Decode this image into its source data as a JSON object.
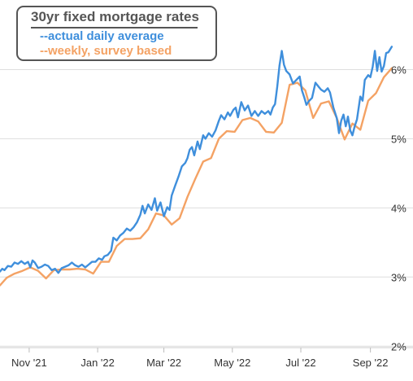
{
  "chart_data": {
    "type": "line",
    "title": "30yr fixed mortgage rates",
    "xlabel": "",
    "ylabel": "",
    "xlim": [
      "2021-10-06",
      "2022-09-23"
    ],
    "ylim": [
      1.85,
      6.5
    ],
    "y_ticks": [
      {
        "value": 2,
        "label": "2%"
      },
      {
        "value": 3,
        "label": "3%"
      },
      {
        "value": 4,
        "label": "4%"
      },
      {
        "value": 5,
        "label": "5%"
      },
      {
        "value": 6,
        "label": "6%"
      }
    ],
    "x_ticks": [
      {
        "date": "2021-11-01",
        "label": "Nov '21"
      },
      {
        "date": "2022-01-01",
        "label": "Jan '22"
      },
      {
        "date": "2022-03-01",
        "label": "Mar '22"
      },
      {
        "date": "2022-05-01",
        "label": "May '22"
      },
      {
        "date": "2022-07-01",
        "label": "Jul '22"
      },
      {
        "date": "2022-09-01",
        "label": "Sep '22"
      }
    ],
    "grid": "horizontal",
    "legend_position": "top-left",
    "series": [
      {
        "name": "--actual daily average",
        "color": "#3f8fdc",
        "points": [
          [
            "2021-10-06",
            3.08
          ],
          [
            "2021-10-08",
            3.12
          ],
          [
            "2021-10-10",
            3.1
          ],
          [
            "2021-10-13",
            3.16
          ],
          [
            "2021-10-16",
            3.15
          ],
          [
            "2021-10-19",
            3.21
          ],
          [
            "2021-10-22",
            3.19
          ],
          [
            "2021-10-25",
            3.23
          ],
          [
            "2021-10-28",
            3.19
          ],
          [
            "2021-10-31",
            3.22
          ],
          [
            "2021-11-02",
            3.14
          ],
          [
            "2021-11-04",
            3.24
          ],
          [
            "2021-11-06",
            3.21
          ],
          [
            "2021-11-09",
            3.13
          ],
          [
            "2021-11-12",
            3.15
          ],
          [
            "2021-11-15",
            3.18
          ],
          [
            "2021-11-18",
            3.16
          ],
          [
            "2021-11-21",
            3.1
          ],
          [
            "2021-11-24",
            3.12
          ],
          [
            "2021-11-27",
            3.06
          ],
          [
            "2021-11-30",
            3.13
          ],
          [
            "2021-12-03",
            3.15
          ],
          [
            "2021-12-06",
            3.17
          ],
          [
            "2021-12-09",
            3.21
          ],
          [
            "2021-12-12",
            3.17
          ],
          [
            "2021-12-15",
            3.15
          ],
          [
            "2021-12-18",
            3.18
          ],
          [
            "2021-12-21",
            3.14
          ],
          [
            "2021-12-24",
            3.18
          ],
          [
            "2021-12-27",
            3.22
          ],
          [
            "2021-12-30",
            3.22
          ],
          [
            "2022-01-02",
            3.27
          ],
          [
            "2022-01-05",
            3.25
          ],
          [
            "2022-01-07",
            3.3
          ],
          [
            "2022-01-10",
            3.32
          ],
          [
            "2022-01-13",
            3.38
          ],
          [
            "2022-01-15",
            3.57
          ],
          [
            "2022-01-18",
            3.53
          ],
          [
            "2022-01-21",
            3.6
          ],
          [
            "2022-01-24",
            3.64
          ],
          [
            "2022-01-27",
            3.7
          ],
          [
            "2022-01-30",
            3.67
          ],
          [
            "2022-02-02",
            3.72
          ],
          [
            "2022-02-05",
            3.79
          ],
          [
            "2022-02-08",
            3.9
          ],
          [
            "2022-02-10",
            4.03
          ],
          [
            "2022-02-12",
            3.92
          ],
          [
            "2022-02-15",
            4.05
          ],
          [
            "2022-02-18",
            3.97
          ],
          [
            "2022-02-21",
            4.14
          ],
          [
            "2022-02-23",
            3.96
          ],
          [
            "2022-02-26",
            4.08
          ],
          [
            "2022-03-01",
            3.88
          ],
          [
            "2022-03-04",
            4.01
          ],
          [
            "2022-03-06",
            3.97
          ],
          [
            "2022-03-08",
            4.18
          ],
          [
            "2022-03-11",
            4.32
          ],
          [
            "2022-03-14",
            4.45
          ],
          [
            "2022-03-17",
            4.6
          ],
          [
            "2022-03-20",
            4.65
          ],
          [
            "2022-03-22",
            4.72
          ],
          [
            "2022-03-24",
            4.84
          ],
          [
            "2022-03-26",
            4.88
          ],
          [
            "2022-03-28",
            4.76
          ],
          [
            "2022-03-31",
            4.96
          ],
          [
            "2022-04-02",
            4.85
          ],
          [
            "2022-04-05",
            5.05
          ],
          [
            "2022-04-07",
            5.0
          ],
          [
            "2022-04-10",
            5.08
          ],
          [
            "2022-04-13",
            5.03
          ],
          [
            "2022-04-16",
            5.12
          ],
          [
            "2022-04-19",
            5.26
          ],
          [
            "2022-04-21",
            5.34
          ],
          [
            "2022-04-24",
            5.28
          ],
          [
            "2022-04-27",
            5.38
          ],
          [
            "2022-04-29",
            5.33
          ],
          [
            "2022-05-02",
            5.42
          ],
          [
            "2022-05-04",
            5.45
          ],
          [
            "2022-05-06",
            5.31
          ],
          [
            "2022-05-09",
            5.53
          ],
          [
            "2022-05-12",
            5.41
          ],
          [
            "2022-05-15",
            5.48
          ],
          [
            "2022-05-18",
            5.33
          ],
          [
            "2022-05-21",
            5.4
          ],
          [
            "2022-05-24",
            5.33
          ],
          [
            "2022-05-27",
            5.4
          ],
          [
            "2022-05-30",
            5.36
          ],
          [
            "2022-06-02",
            5.4
          ],
          [
            "2022-06-04",
            5.35
          ],
          [
            "2022-06-06",
            5.45
          ],
          [
            "2022-06-08",
            5.5
          ],
          [
            "2022-06-10",
            5.75
          ],
          [
            "2022-06-12",
            6.06
          ],
          [
            "2022-06-14",
            6.27
          ],
          [
            "2022-06-16",
            6.07
          ],
          [
            "2022-06-18",
            5.98
          ],
          [
            "2022-06-21",
            5.93
          ],
          [
            "2022-06-24",
            5.8
          ],
          [
            "2022-06-27",
            5.85
          ],
          [
            "2022-06-30",
            5.9
          ],
          [
            "2022-07-02",
            5.7
          ],
          [
            "2022-07-04",
            5.6
          ],
          [
            "2022-07-06",
            5.49
          ],
          [
            "2022-07-08",
            5.54
          ],
          [
            "2022-07-11",
            5.59
          ],
          [
            "2022-07-14",
            5.81
          ],
          [
            "2022-07-17",
            5.75
          ],
          [
            "2022-07-19",
            5.71
          ],
          [
            "2022-07-22",
            5.68
          ],
          [
            "2022-07-25",
            5.73
          ],
          [
            "2022-07-27",
            5.67
          ],
          [
            "2022-07-30",
            5.45
          ],
          [
            "2022-08-02",
            5.3
          ],
          [
            "2022-08-04",
            5.08
          ],
          [
            "2022-08-06",
            5.26
          ],
          [
            "2022-08-08",
            5.35
          ],
          [
            "2022-08-10",
            5.18
          ],
          [
            "2022-08-12",
            5.32
          ],
          [
            "2022-08-14",
            5.12
          ],
          [
            "2022-08-16",
            5.05
          ],
          [
            "2022-08-18",
            5.18
          ],
          [
            "2022-08-20",
            5.28
          ],
          [
            "2022-08-23",
            5.61
          ],
          [
            "2022-08-25",
            5.55
          ],
          [
            "2022-08-27",
            5.85
          ],
          [
            "2022-08-30",
            5.92
          ],
          [
            "2022-09-01",
            5.89
          ],
          [
            "2022-09-03",
            6.04
          ],
          [
            "2022-09-05",
            6.27
          ],
          [
            "2022-09-07",
            5.98
          ],
          [
            "2022-09-09",
            6.18
          ],
          [
            "2022-09-11",
            5.97
          ],
          [
            "2022-09-13",
            6.05
          ],
          [
            "2022-09-15",
            6.24
          ],
          [
            "2022-09-17",
            6.25
          ],
          [
            "2022-09-20",
            6.33
          ]
        ]
      },
      {
        "name": "--weekly, survey based",
        "color": "#f4a264",
        "points": [
          [
            "2021-10-06",
            2.88
          ],
          [
            "2021-10-12",
            2.99
          ],
          [
            "2021-10-19",
            3.05
          ],
          [
            "2021-10-26",
            3.09
          ],
          [
            "2021-11-02",
            3.14
          ],
          [
            "2021-11-09",
            3.09
          ],
          [
            "2021-11-16",
            2.98
          ],
          [
            "2021-11-23",
            3.1
          ],
          [
            "2021-11-30",
            3.11
          ],
          [
            "2021-12-07",
            3.11
          ],
          [
            "2021-12-14",
            3.12
          ],
          [
            "2021-12-21",
            3.11
          ],
          [
            "2021-12-28",
            3.05
          ],
          [
            "2022-01-04",
            3.22
          ],
          [
            "2022-01-11",
            3.22
          ],
          [
            "2022-01-18",
            3.45
          ],
          [
            "2022-01-25",
            3.55
          ],
          [
            "2022-02-01",
            3.55
          ],
          [
            "2022-02-08",
            3.56
          ],
          [
            "2022-02-15",
            3.69
          ],
          [
            "2022-02-22",
            3.92
          ],
          [
            "2022-03-01",
            3.89
          ],
          [
            "2022-03-08",
            3.76
          ],
          [
            "2022-03-15",
            3.85
          ],
          [
            "2022-03-22",
            4.16
          ],
          [
            "2022-03-29",
            4.42
          ],
          [
            "2022-04-05",
            4.67
          ],
          [
            "2022-04-12",
            4.72
          ],
          [
            "2022-04-19",
            5.0
          ],
          [
            "2022-04-26",
            5.11
          ],
          [
            "2022-05-03",
            5.1
          ],
          [
            "2022-05-10",
            5.27
          ],
          [
            "2022-05-17",
            5.3
          ],
          [
            "2022-05-24",
            5.25
          ],
          [
            "2022-05-31",
            5.1
          ],
          [
            "2022-06-07",
            5.09
          ],
          [
            "2022-06-14",
            5.23
          ],
          [
            "2022-06-21",
            5.78
          ],
          [
            "2022-06-28",
            5.81
          ],
          [
            "2022-07-05",
            5.7
          ],
          [
            "2022-07-12",
            5.3
          ],
          [
            "2022-07-19",
            5.51
          ],
          [
            "2022-07-26",
            5.54
          ],
          [
            "2022-08-02",
            5.3
          ],
          [
            "2022-08-09",
            4.99
          ],
          [
            "2022-08-16",
            5.22
          ],
          [
            "2022-08-23",
            5.13
          ],
          [
            "2022-08-30",
            5.55
          ],
          [
            "2022-09-06",
            5.66
          ],
          [
            "2022-09-13",
            5.89
          ],
          [
            "2022-09-20",
            6.02
          ]
        ]
      }
    ]
  }
}
